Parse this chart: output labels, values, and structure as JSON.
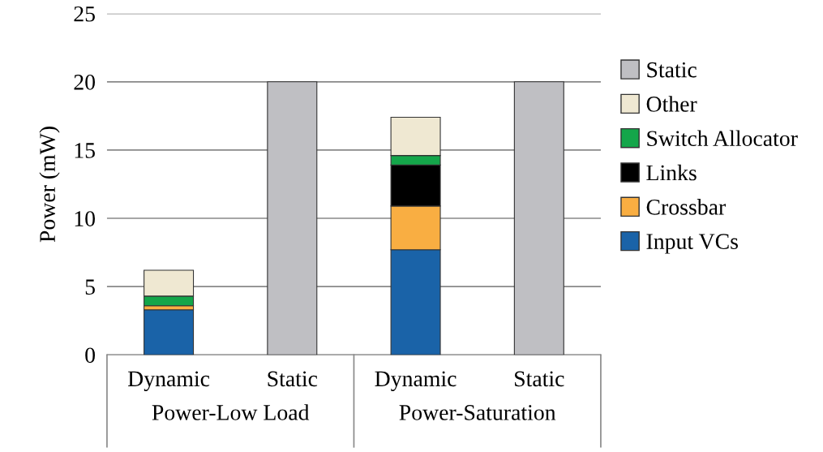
{
  "chart_data": {
    "type": "bar",
    "ylabel": "Power (mW)",
    "stacked": true,
    "categories": [
      "Dynamic",
      "Static",
      "Dynamic",
      "Static"
    ],
    "series": [
      {
        "name": "Input VCs",
        "color": "#1a63a8",
        "values": [
          3.3,
          null,
          7.7,
          null
        ]
      },
      {
        "name": "Crossbar",
        "color": "#f9ae42",
        "values": [
          0.3,
          null,
          3.2,
          null
        ]
      },
      {
        "name": "Links",
        "color": "#000000",
        "values": [
          null,
          null,
          3.0,
          null
        ]
      },
      {
        "name": "Switch Allocator",
        "color": "#14a64a",
        "values": [
          0.7,
          null,
          0.7,
          null
        ]
      },
      {
        "name": "Other",
        "color": "#efe8d2",
        "values": [
          1.9,
          null,
          2.8,
          null
        ]
      },
      {
        "name": "Static",
        "color": "#bfbfc3",
        "values": [
          null,
          20,
          null,
          20
        ]
      }
    ],
    "annotations": [
      "Power-Low Load",
      "Power-Saturation"
    ],
    "ylim": [
      0,
      25
    ],
    "yticks": [
      0,
      5,
      10,
      15,
      20,
      25
    ],
    "grid": "y",
    "legend": "right"
  }
}
